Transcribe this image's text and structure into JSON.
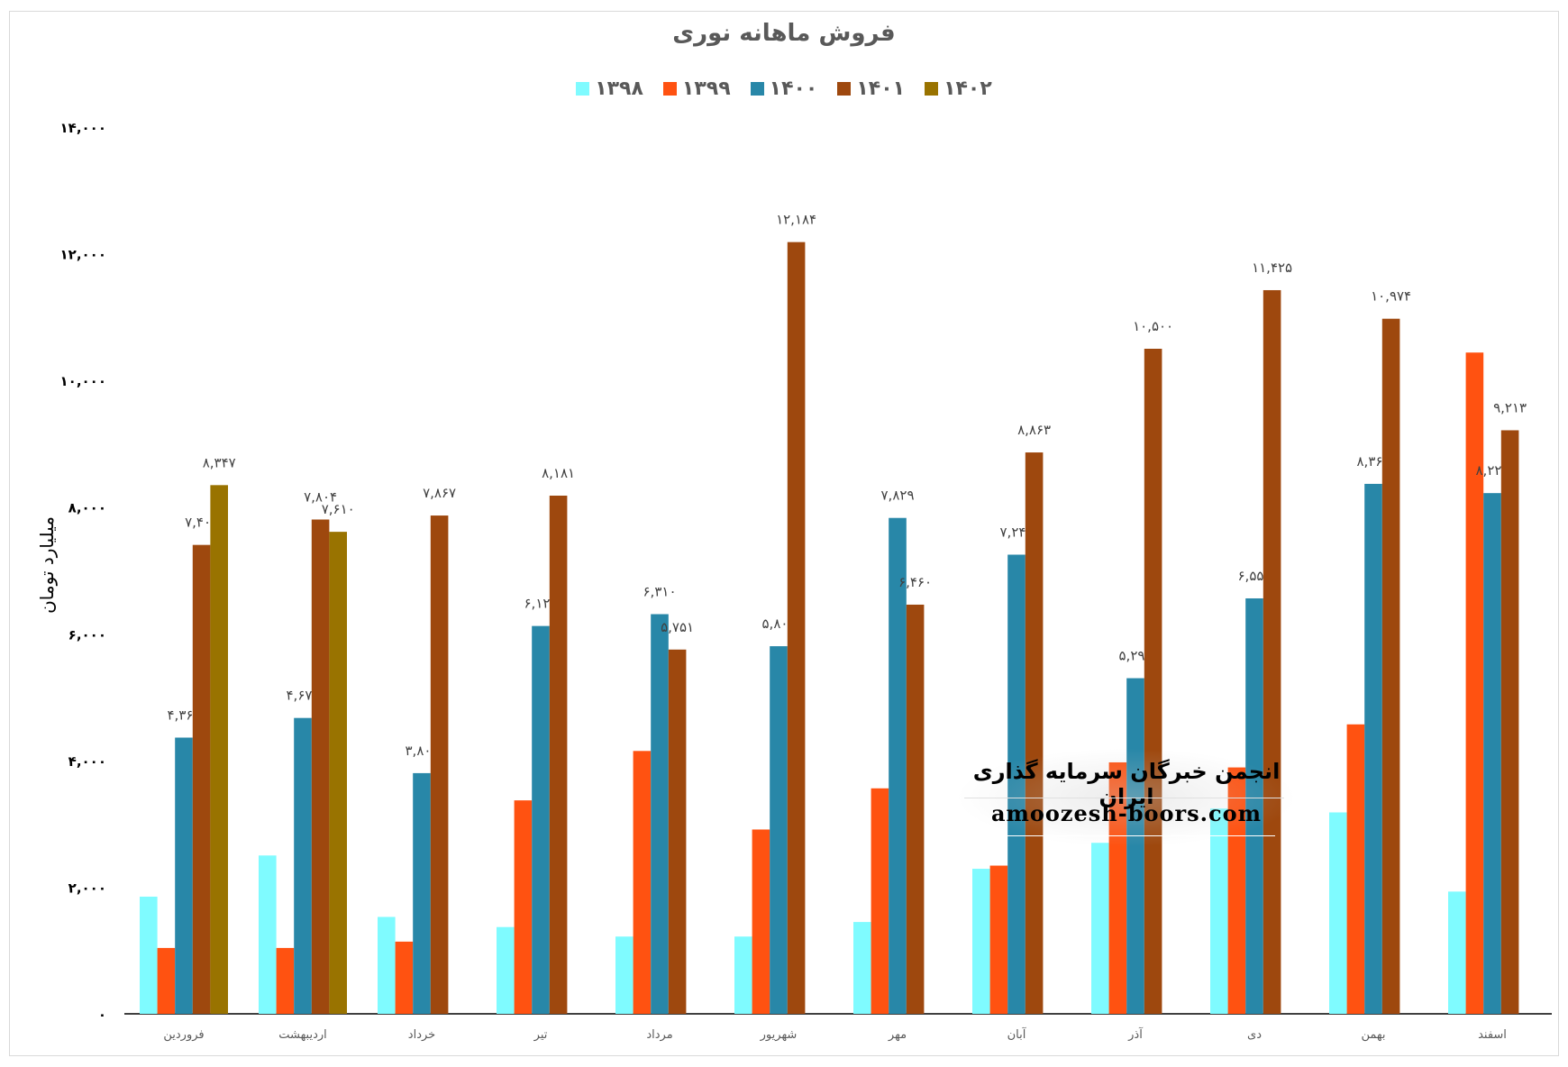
{
  "chart_data": {
    "type": "bar",
    "title": "فروش ماهانه نوری",
    "ylabel": "میلیارد تومان",
    "xlabel": "",
    "ylim": [
      0,
      14000
    ],
    "yticks": [
      0,
      2000,
      4000,
      6000,
      8000,
      10000,
      12000,
      14000
    ],
    "ytick_labels": [
      "۰",
      "۲,۰۰۰",
      "۴,۰۰۰",
      "۶,۰۰۰",
      "۸,۰۰۰",
      "۱۰,۰۰۰",
      "۱۲,۰۰۰",
      "۱۴,۰۰۰"
    ],
    "grid": false,
    "legend_position": "top",
    "categories": [
      "فروردین",
      "اردیبهشت",
      "خرداد",
      "تیر",
      "مرداد",
      "شهریور",
      "مهر",
      "آبان",
      "آذر",
      "دی",
      "بهمن",
      "اسفند"
    ],
    "series": [
      {
        "name": "۱۳۹۸",
        "color": "#7FFBFF",
        "show_labels": false,
        "values": [
          1850,
          2500,
          1530,
          1370,
          1220,
          1220,
          1450,
          2290,
          2700,
          3240,
          3180,
          1930
        ]
      },
      {
        "name": "۱۳۹۹",
        "color": "#FF5211",
        "show_labels": false,
        "values": [
          1040,
          1040,
          1140,
          3370,
          4150,
          2910,
          3560,
          2340,
          3970,
          3890,
          4570,
          10440
        ]
      },
      {
        "name": "۱۴۰۰",
        "color": "#2887A8",
        "show_labels": true,
        "values": [
          4361,
          4671,
          3800,
          6123,
          6310,
          5804,
          7829,
          7249,
          5299,
          6559,
          8367,
          8221
        ]
      },
      {
        "name": "۱۴۰۱",
        "color": "#9E480E",
        "show_labels": true,
        "values": [
          7403,
          7804,
          7867,
          8181,
          5751,
          12184,
          6460,
          8863,
          10500,
          11425,
          10974,
          9213
        ]
      },
      {
        "name": "۱۴۰۲",
        "color": "#997300",
        "show_labels": true,
        "values": [
          8347,
          7610,
          null,
          null,
          null,
          null,
          null,
          null,
          null,
          null,
          null,
          null
        ]
      }
    ]
  },
  "watermark": {
    "line1": "انجمن خبرگان سرمایه گذاری ایران",
    "line2": "amoozesh-boors.com"
  }
}
